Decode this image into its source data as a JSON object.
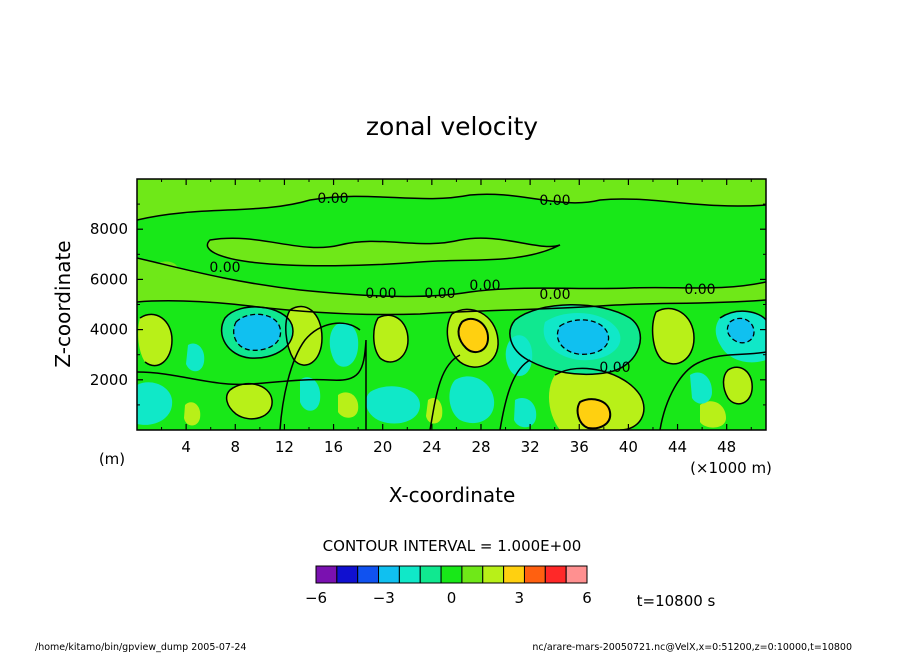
{
  "chart_data": {
    "type": "heatmap",
    "title": "zonal velocity",
    "xlabel": "X-coordinate",
    "ylabel": "Z-coordinate",
    "x_unit": "(×1000 m)",
    "y_unit": "(m)",
    "xlim": [
      0,
      51.2
    ],
    "ylim": [
      0,
      10000
    ],
    "x_ticks": [
      "4",
      "8",
      "12",
      "16",
      "20",
      "24",
      "28",
      "32",
      "36",
      "40",
      "44",
      "48"
    ],
    "y_ticks": [
      "2000",
      "4000",
      "6000",
      "8000"
    ],
    "contour_labels": [
      "0.00",
      "0.00",
      "0.00",
      "0.00",
      "0.00",
      "0.00",
      "0.00",
      "0.00",
      "0.00"
    ],
    "contour_interval_text": "CONTOUR INTERVAL = 1.000E+00",
    "colorbar": {
      "levels": [
        -6,
        -5,
        -4,
        -3,
        -2,
        -1,
        0,
        1,
        2,
        3,
        4,
        5,
        6
      ],
      "tick_labels": [
        "−6",
        "−3",
        "0",
        "3",
        "6"
      ],
      "colors": [
        "#7a11b0",
        "#1010d0",
        "#1052f0",
        "#10c0f0",
        "#10e8c8",
        "#10e890",
        "#18e818",
        "#6fe818",
        "#b8f018",
        "#ffd010",
        "#ff6010",
        "#ff2828",
        "#ff9090"
      ]
    },
    "time_label": "t=10800 s"
  },
  "footer": {
    "left": "/home/kitamo/bin/gpview_dump  2005-07-24",
    "right": "nc/arare-mars-20050721.nc@VelX,x=0:51200,z=0:10000,t=10800"
  },
  "colors": {
    "background_zero": "#18e818",
    "positive_1": "#6fe818",
    "positive_2": "#b8f018",
    "positive_3": "#ffd010",
    "negative_1": "#10e890",
    "negative_2": "#10e8c8",
    "negative_3": "#10c0f0"
  }
}
